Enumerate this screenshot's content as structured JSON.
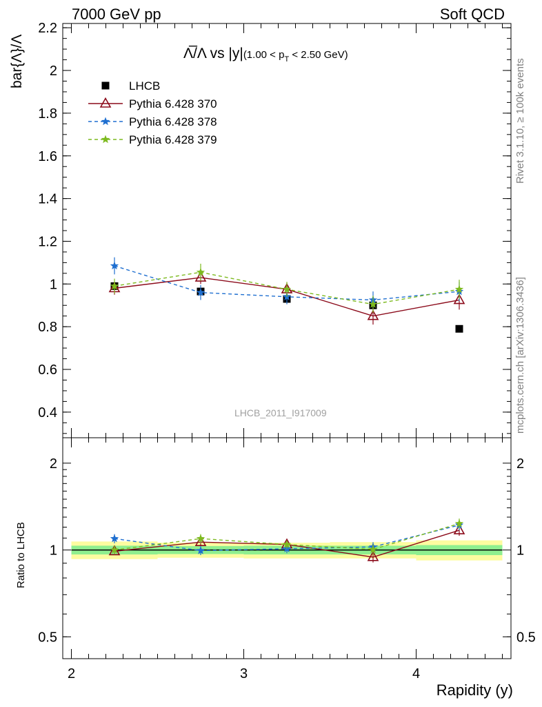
{
  "header": {
    "left": "7000 GeV pp",
    "right": "Soft QCD"
  },
  "side_labels": {
    "rivet": "Rivet 3.1.10, ≥ 100k events",
    "mcplots": "mcplots.cern.ch [arXiv:1306.3436]"
  },
  "analysis_id": "LHCB_2011_I917009",
  "chart_data": [
    {
      "type": "scatter",
      "title_main": "Λ̅/Λ vs |y|",
      "title_sub": "(1.00 < p",
      "title_sub_index": "T",
      "title_sub_end": " < 2.50 GeV)",
      "ylabel": "bar{Λ}/Λ",
      "xlabel": "",
      "xlim": [
        1.95,
        4.55
      ],
      "ylim": [
        0.28,
        2.22
      ],
      "yticks": [
        "0.4",
        "0.6",
        "0.8",
        "1",
        "1.2",
        "1.4",
        "1.6",
        "1.8",
        "2",
        "2.2"
      ],
      "x": [
        2.25,
        2.75,
        3.25,
        3.75,
        4.25
      ],
      "series": [
        {
          "name": "LHCB",
          "color": "#000000",
          "marker": "square",
          "linestyle": "none",
          "values": [
            0.99,
            0.965,
            0.93,
            0.9,
            0.79
          ],
          "errors": [
            0.01,
            0.01,
            0.01,
            0.01,
            0.01
          ]
        },
        {
          "name": "Pythia 6.428 370",
          "color": "#8b0a1a",
          "marker": "triangle-open",
          "linestyle": "solid",
          "values": [
            0.98,
            1.03,
            0.975,
            0.85,
            0.925
          ],
          "errors": [
            0.03,
            0.03,
            0.03,
            0.04,
            0.045
          ]
        },
        {
          "name": "Pythia 6.428 378",
          "color": "#1f6fd0",
          "marker": "star",
          "linestyle": "dashed",
          "values": [
            1.085,
            0.96,
            0.94,
            0.925,
            0.965
          ],
          "errors": [
            0.04,
            0.035,
            0.035,
            0.04,
            0.045
          ]
        },
        {
          "name": "Pythia 6.428 379",
          "color": "#7dba1f",
          "marker": "star",
          "linestyle": "dashed",
          "values": [
            0.99,
            1.055,
            0.975,
            0.905,
            0.975
          ],
          "errors": [
            0.035,
            0.04,
            0.035,
            0.04,
            0.045
          ]
        }
      ],
      "legend_position": "top-left"
    },
    {
      "type": "scatter",
      "ylabel": "Ratio to LHCB",
      "xlabel": "Rapidity (y)",
      "xlim": [
        1.95,
        4.55
      ],
      "ylim": [
        0.42,
        2.45
      ],
      "y_scale": "log",
      "xticks": [
        "2",
        "3",
        "4"
      ],
      "yticks": [
        "0.5",
        "1",
        "2"
      ],
      "x": [
        2.25,
        2.75,
        3.25,
        3.75,
        4.25
      ],
      "bands": [
        {
          "x_range": [
            2.0,
            2.5
          ],
          "inner": [
            0.965,
            1.035
          ],
          "outer": [
            0.93,
            1.07
          ]
        },
        {
          "x_range": [
            2.5,
            3.0
          ],
          "inner": [
            0.968,
            1.032
          ],
          "outer": [
            0.94,
            1.06
          ]
        },
        {
          "x_range": [
            3.0,
            3.5
          ],
          "inner": [
            0.965,
            1.035
          ],
          "outer": [
            0.935,
            1.06
          ]
        },
        {
          "x_range": [
            3.5,
            4.0
          ],
          "inner": [
            0.965,
            1.035
          ],
          "outer": [
            0.935,
            1.065
          ]
        },
        {
          "x_range": [
            4.0,
            4.5
          ],
          "inner": [
            0.96,
            1.04
          ],
          "outer": [
            0.92,
            1.08
          ]
        }
      ],
      "band_colors": {
        "inner": "#8fef8f",
        "outer": "#fdfca0"
      },
      "series": [
        {
          "name": "Pythia 6.428 370",
          "color": "#8b0a1a",
          "marker": "triangle-open",
          "linestyle": "solid",
          "values": [
            0.99,
            1.065,
            1.045,
            0.945,
            1.17
          ],
          "errors": [
            0.03,
            0.03,
            0.03,
            0.04,
            0.05
          ]
        },
        {
          "name": "Pythia 6.428 378",
          "color": "#1f6fd0",
          "marker": "star",
          "linestyle": "dashed",
          "values": [
            1.095,
            0.995,
            1.01,
            1.025,
            1.22
          ],
          "errors": [
            0.04,
            0.035,
            0.035,
            0.04,
            0.05
          ]
        },
        {
          "name": "Pythia 6.428 379",
          "color": "#7dba1f",
          "marker": "star",
          "linestyle": "dashed",
          "values": [
            1.0,
            1.095,
            1.045,
            1.005,
            1.235
          ],
          "errors": [
            0.035,
            0.04,
            0.035,
            0.04,
            0.05
          ]
        }
      ]
    }
  ]
}
